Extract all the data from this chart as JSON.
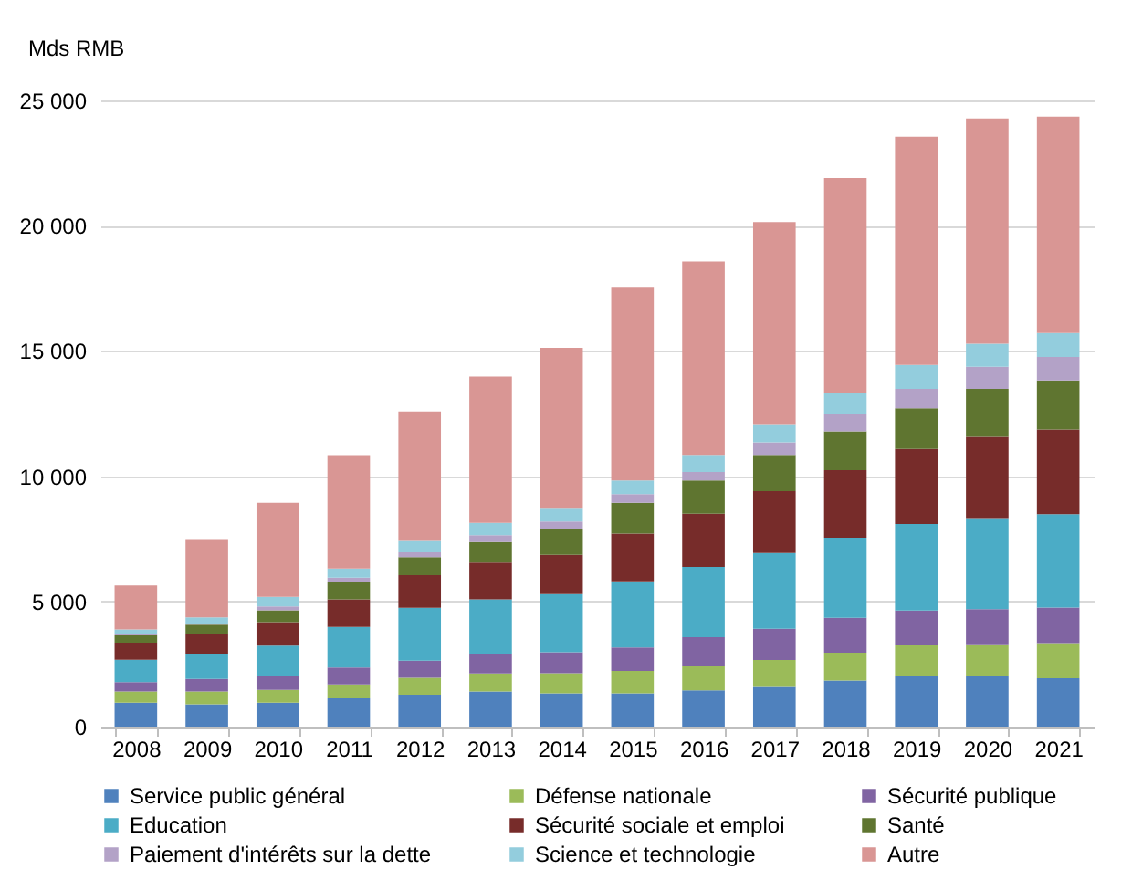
{
  "chart_data": {
    "type": "bar",
    "stacked": true,
    "ylabel": "Mds RMB",
    "categories": [
      "2008",
      "2009",
      "2010",
      "2011",
      "2012",
      "2013",
      "2014",
      "2015",
      "2016",
      "2017",
      "2018",
      "2019",
      "2020",
      "2021"
    ],
    "series": [
      {
        "name": "Service public général",
        "color": "#4f81bd",
        "values": [
          960,
          890,
          960,
          1130,
          1280,
          1400,
          1330,
          1330,
          1450,
          1620,
          1840,
          2000,
          2000,
          1930
        ]
      },
      {
        "name": "Défense nationale",
        "color": "#9bbb59",
        "values": [
          440,
          510,
          510,
          560,
          670,
          720,
          800,
          890,
          990,
          1040,
          1110,
          1240,
          1290,
          1400
        ]
      },
      {
        "name": "Sécurité publique",
        "color": "#8064a2",
        "values": [
          380,
          500,
          550,
          670,
          680,
          800,
          840,
          940,
          1130,
          1250,
          1400,
          1400,
          1400,
          1430
        ]
      },
      {
        "name": "Education",
        "color": "#4bacc6",
        "values": [
          890,
          1020,
          1210,
          1620,
          2120,
          2160,
          2320,
          2640,
          2810,
          3020,
          3190,
          3450,
          3640,
          3720
        ]
      },
      {
        "name": "Sécurité sociale et emploi",
        "color": "#772c2a",
        "values": [
          680,
          790,
          940,
          1100,
          1300,
          1470,
          1570,
          1910,
          2120,
          2470,
          2700,
          3000,
          3240,
          3380
        ]
      },
      {
        "name": "Santé",
        "color": "#5f7530",
        "values": [
          290,
          360,
          480,
          680,
          720,
          820,
          1010,
          1230,
          1330,
          1450,
          1550,
          1620,
          1910,
          1960
        ]
      },
      {
        "name": "Paiement d'intérêts sur la dette",
        "color": "#b3a2c7",
        "values": [
          50,
          50,
          150,
          190,
          190,
          270,
          320,
          340,
          340,
          500,
          700,
          770,
          890,
          940
        ]
      },
      {
        "name": "Science et technologie",
        "color": "#93cddd",
        "values": [
          190,
          240,
          380,
          360,
          460,
          500,
          510,
          550,
          680,
          730,
          820,
          960,
          920,
          960
        ]
      },
      {
        "name": "Autre",
        "color": "#d99694",
        "values": [
          1760,
          3130,
          3760,
          4530,
          5160,
          5840,
          6420,
          7730,
          7720,
          8060,
          8590,
          9110,
          8990,
          8630
        ]
      }
    ],
    "ylim": [
      0,
      25000
    ],
    "yticks": [
      0,
      5000,
      10000,
      15000,
      20000,
      25000
    ],
    "grid": "y",
    "legend": "bottom"
  }
}
